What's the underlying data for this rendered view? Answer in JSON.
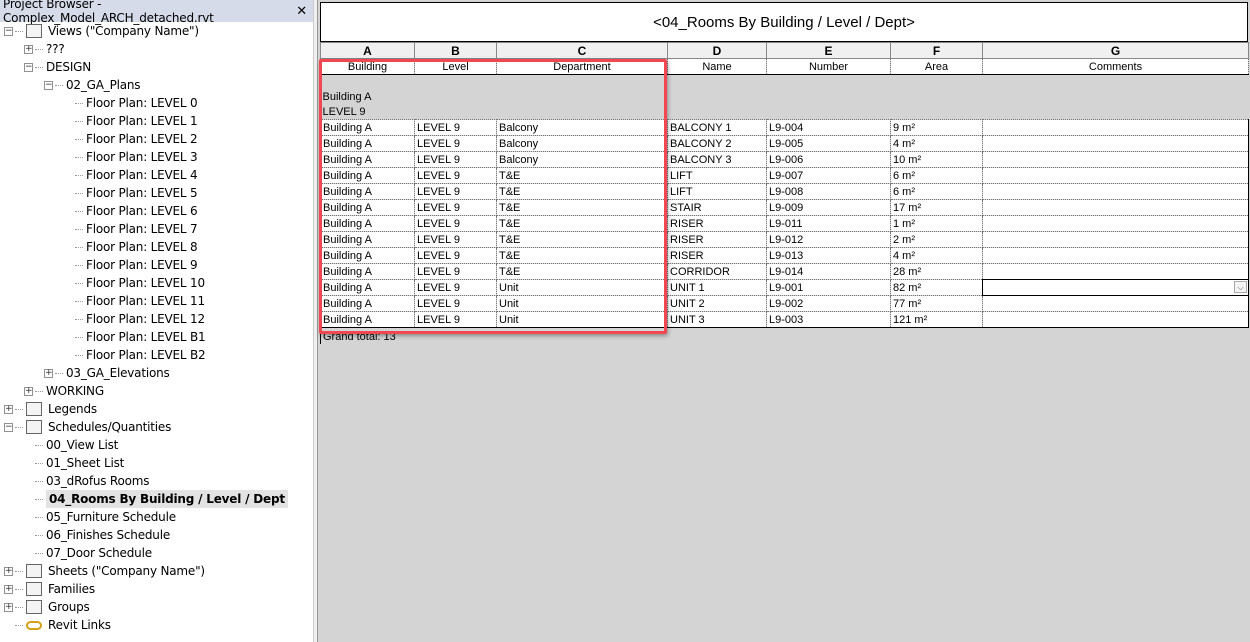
{
  "browser": {
    "title": "Project Browser - Complex_Model_ARCH_detached.rvt",
    "close": "✕",
    "items": [
      {
        "label": "Views (\"Company Name\")",
        "level": 0,
        "toggle": "−",
        "icon": "views-icon"
      },
      {
        "label": "???",
        "level": 1,
        "toggle": "+"
      },
      {
        "label": "DESIGN",
        "level": 1,
        "toggle": "−"
      },
      {
        "label": "02_GA_Plans",
        "level": 2,
        "toggle": "−"
      },
      {
        "label": "Floor Plan: LEVEL 0",
        "level": 3
      },
      {
        "label": "Floor Plan: LEVEL 1",
        "level": 3
      },
      {
        "label": "Floor Plan: LEVEL 2",
        "level": 3
      },
      {
        "label": "Floor Plan: LEVEL 3",
        "level": 3
      },
      {
        "label": "Floor Plan: LEVEL 4",
        "level": 3
      },
      {
        "label": "Floor Plan: LEVEL 5",
        "level": 3
      },
      {
        "label": "Floor Plan: LEVEL 6",
        "level": 3
      },
      {
        "label": "Floor Plan: LEVEL 7",
        "level": 3
      },
      {
        "label": "Floor Plan: LEVEL 8",
        "level": 3
      },
      {
        "label": "Floor Plan: LEVEL 9",
        "level": 3
      },
      {
        "label": "Floor Plan: LEVEL 10",
        "level": 3
      },
      {
        "label": "Floor Plan: LEVEL 11",
        "level": 3
      },
      {
        "label": "Floor Plan: LEVEL 12",
        "level": 3
      },
      {
        "label": "Floor Plan: LEVEL B1",
        "level": 3
      },
      {
        "label": "Floor Plan: LEVEL B2",
        "level": 3
      },
      {
        "label": "03_GA_Elevations",
        "level": 2,
        "toggle": "+"
      },
      {
        "label": "WORKING",
        "level": 1,
        "toggle": "+"
      },
      {
        "label": "Legends",
        "level": 0,
        "toggle": "+",
        "icon": "legends-icon"
      },
      {
        "label": "Schedules/Quantities",
        "level": 0,
        "toggle": "−",
        "icon": "schedules-icon"
      },
      {
        "label": "00_View List",
        "level": 1
      },
      {
        "label": "01_Sheet List",
        "level": 1
      },
      {
        "label": "03_dRofus Rooms",
        "level": 1
      },
      {
        "label": "04_Rooms By Building / Level / Dept",
        "level": 1,
        "selected": true
      },
      {
        "label": "05_Furniture Schedule",
        "level": 1
      },
      {
        "label": "06_Finishes Schedule",
        "level": 1
      },
      {
        "label": "07_Door Schedule",
        "level": 1
      },
      {
        "label": "Sheets (\"Company Name\")",
        "level": 0,
        "toggle": "+",
        "icon": "sheets-icon"
      },
      {
        "label": "Families",
        "level": 0,
        "toggle": "+",
        "icon": "families-icon"
      },
      {
        "label": "Groups",
        "level": 0,
        "toggle": "+",
        "icon": "groups-icon"
      },
      {
        "label": "Revit Links",
        "level": 0,
        "icon": "revit-links-icon"
      }
    ]
  },
  "schedule": {
    "title": "<04_Rooms By Building / Level / Dept>",
    "letters": [
      "A",
      "B",
      "C",
      "D",
      "E",
      "F",
      "G"
    ],
    "headers": [
      "Building",
      "Level",
      "Department",
      "Name",
      "Number",
      "Area",
      "Comments"
    ],
    "group_building": "Building A",
    "group_level": "LEVEL 9",
    "rows": [
      [
        "Building A",
        "LEVEL 9",
        "Balcony",
        "BALCONY 1",
        "L9-004",
        "9 m²",
        ""
      ],
      [
        "Building A",
        "LEVEL 9",
        "Balcony",
        "BALCONY 2",
        "L9-005",
        "4 m²",
        ""
      ],
      [
        "Building A",
        "LEVEL 9",
        "Balcony",
        "BALCONY 3",
        "L9-006",
        "10 m²",
        ""
      ],
      [
        "Building A",
        "LEVEL 9",
        "T&E",
        "LIFT",
        "L9-007",
        "6 m²",
        ""
      ],
      [
        "Building A",
        "LEVEL 9",
        "T&E",
        "LIFT",
        "L9-008",
        "6 m²",
        ""
      ],
      [
        "Building A",
        "LEVEL 9",
        "T&E",
        "STAIR",
        "L9-009",
        "17 m²",
        ""
      ],
      [
        "Building A",
        "LEVEL 9",
        "T&E",
        "RISER",
        "L9-011",
        "1 m²",
        ""
      ],
      [
        "Building A",
        "LEVEL 9",
        "T&E",
        "RISER",
        "L9-012",
        "2 m²",
        ""
      ],
      [
        "Building A",
        "LEVEL 9",
        "T&E",
        "RISER",
        "L9-013",
        "4 m²",
        ""
      ],
      [
        "Building A",
        "LEVEL 9",
        "T&E",
        "CORRIDOR",
        "L9-014",
        "28 m²",
        ""
      ],
      [
        "Building A",
        "LEVEL 9",
        "Unit",
        "UNIT 1",
        "L9-001",
        "82 m²",
        ""
      ],
      [
        "Building A",
        "LEVEL 9",
        "Unit",
        "UNIT 2",
        "L9-002",
        "77 m²",
        ""
      ],
      [
        "Building A",
        "LEVEL 9",
        "Unit",
        "UNIT 3",
        "L9-003",
        "121 m²",
        ""
      ]
    ],
    "grand_total": "Grand total: 13",
    "highlight_color": "#f04850"
  }
}
